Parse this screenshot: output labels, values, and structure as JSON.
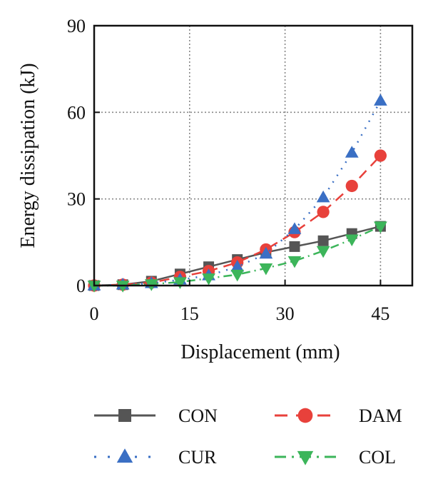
{
  "chart_data": {
    "type": "line",
    "xlabel": "Displacement (mm)",
    "ylabel": "Energy dissipation (kJ)",
    "xlim": [
      0,
      50
    ],
    "ylim": [
      0,
      90
    ],
    "xticks": [
      0,
      15,
      30,
      45
    ],
    "yticks": [
      0,
      30,
      60,
      90
    ],
    "xtick_labels": [
      "0",
      "15",
      "30",
      "45"
    ],
    "ytick_labels": [
      "0",
      "30",
      "60",
      "90"
    ],
    "grid": "dotted",
    "legend_position": "below",
    "series": [
      {
        "name": "CON",
        "color": "#555555",
        "marker": "square",
        "line_style": "solid",
        "x": [
          0,
          4.5,
          9,
          13.5,
          18,
          22.5,
          27,
          31.5,
          36,
          40.5,
          45
        ],
        "y": [
          0,
          0.3,
          1.5,
          4,
          6.5,
          9,
          11.5,
          13.5,
          15.5,
          18,
          20.5
        ]
      },
      {
        "name": "DAM",
        "color": "#e8413b",
        "marker": "circle",
        "line_style": "dashed",
        "x": [
          0,
          4.5,
          9,
          13.5,
          18,
          22.5,
          27,
          31.5,
          36,
          40.5,
          45
        ],
        "y": [
          0,
          0.3,
          1,
          3,
          5,
          8,
          12.5,
          18.5,
          25.5,
          34.5,
          45
        ]
      },
      {
        "name": "CUR",
        "color": "#3a6fc4",
        "marker": "triangle-up",
        "line_style": "dotted",
        "x": [
          0,
          4.5,
          9,
          13.5,
          18,
          22.5,
          27,
          31.5,
          36,
          40.5,
          45
        ],
        "y": [
          0,
          0.3,
          0.8,
          2,
          3.5,
          6.5,
          11,
          19.5,
          30.5,
          46,
          64
        ]
      },
      {
        "name": "COL",
        "color": "#3cb55a",
        "marker": "triangle-down",
        "line_style": "dashdot",
        "x": [
          0,
          4.5,
          9,
          13.5,
          18,
          22.5,
          27,
          31.5,
          36,
          40.5,
          45
        ],
        "y": [
          0,
          0,
          0.5,
          1.2,
          2.5,
          3.8,
          6,
          8.5,
          12,
          16,
          20.5
        ]
      }
    ]
  }
}
